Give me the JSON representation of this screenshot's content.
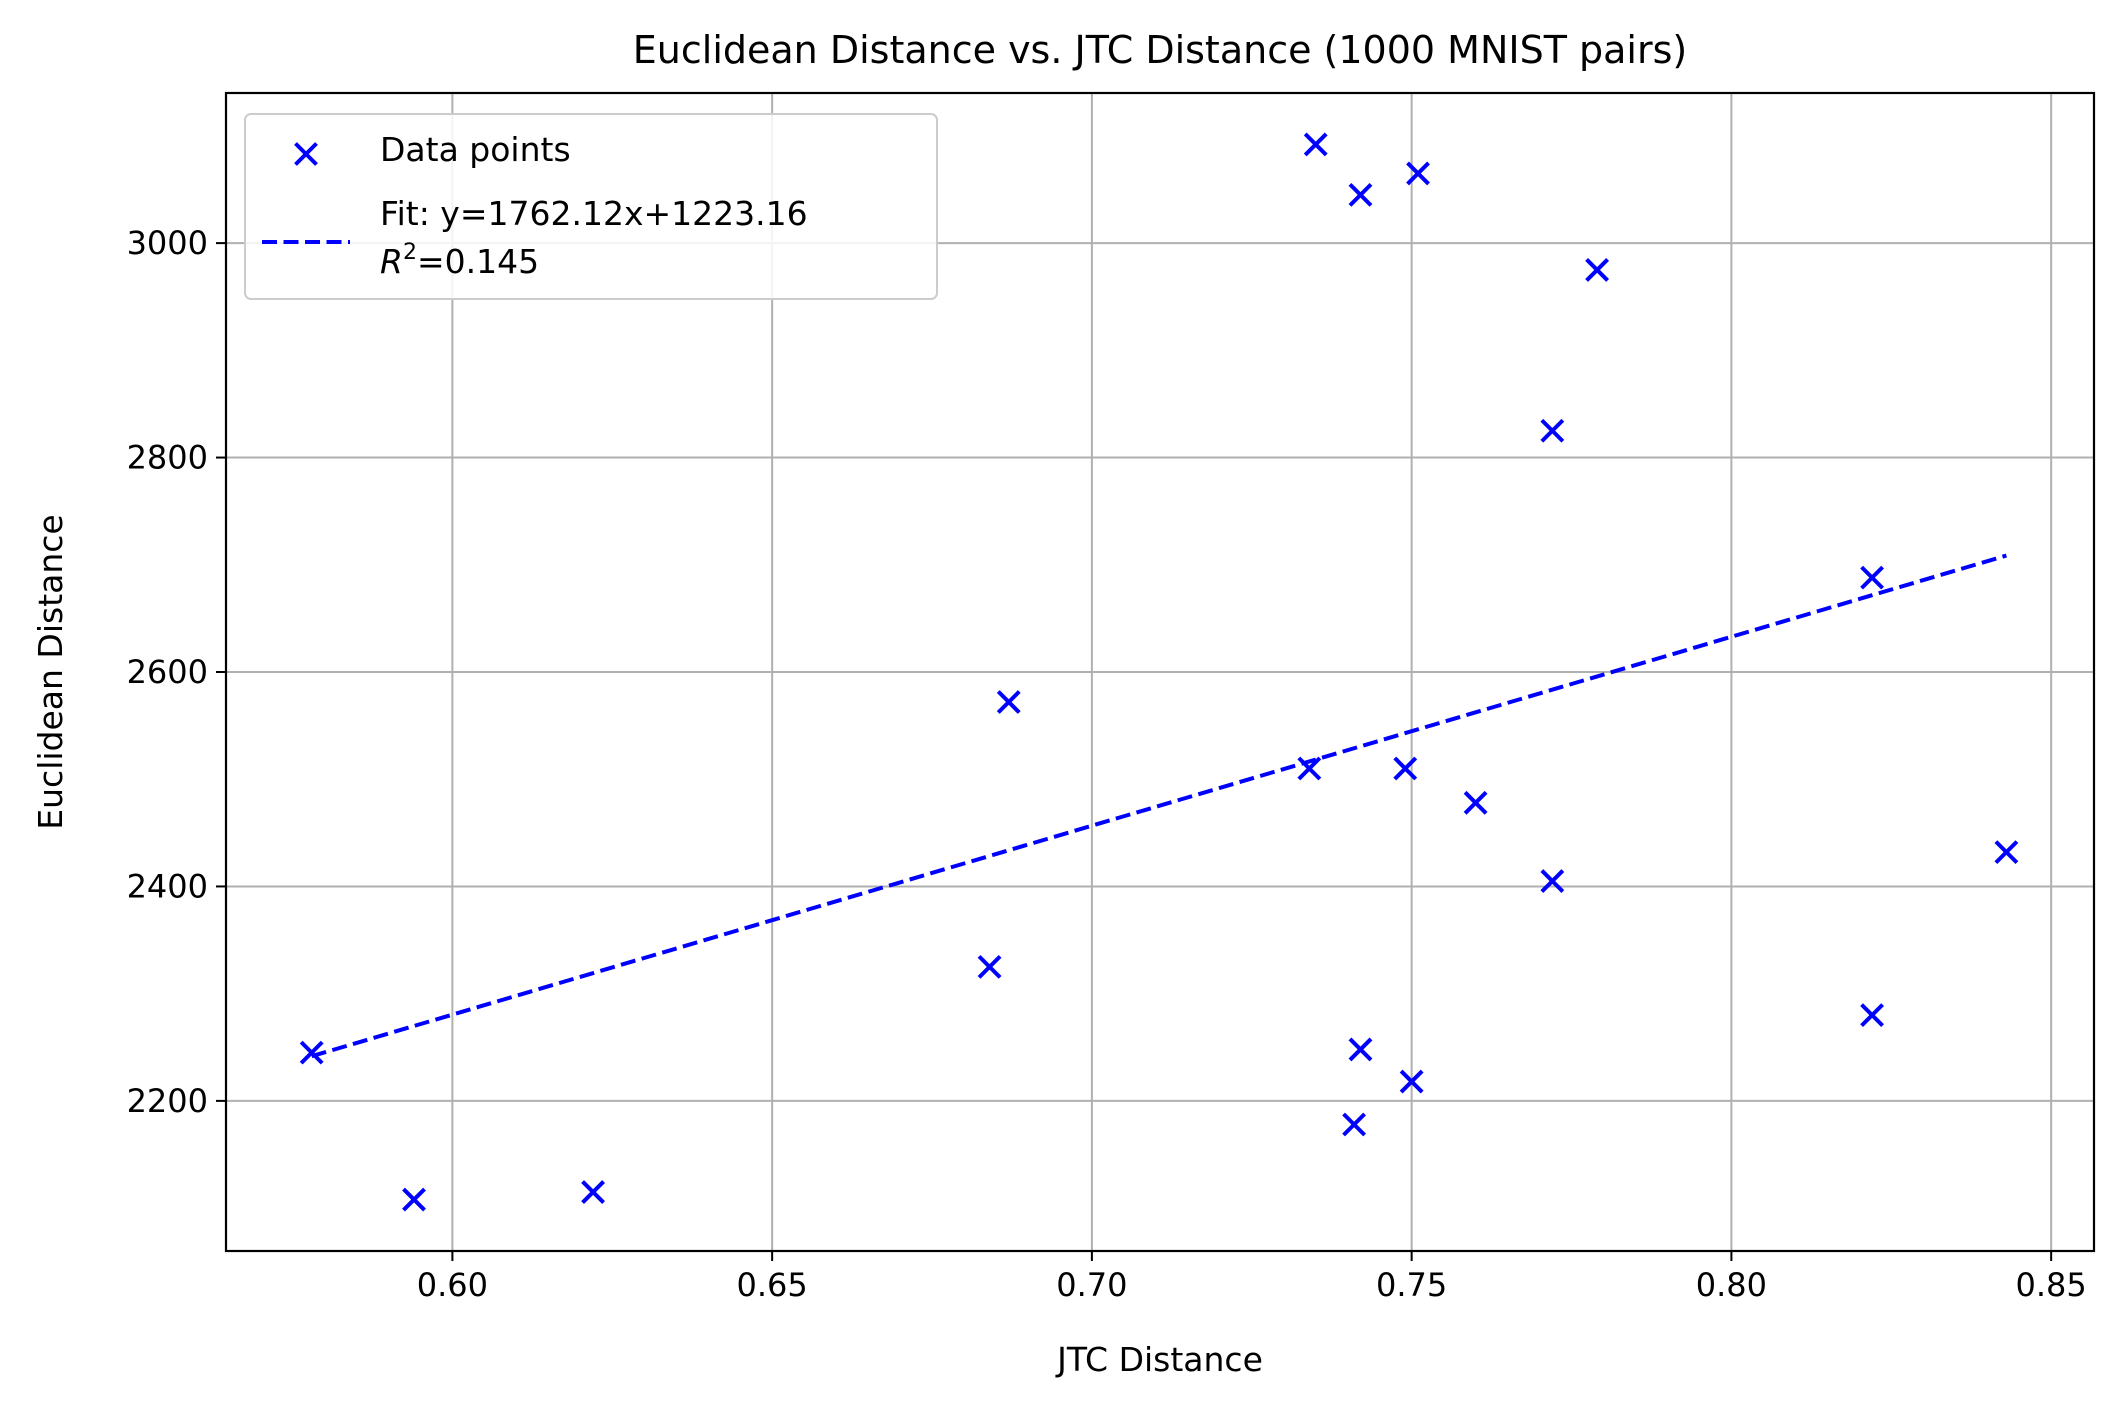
{
  "chart_data": {
    "type": "scatter",
    "title": "Euclidean Distance vs. JTC Distance (1000 MNIST pairs)",
    "xlabel": "JTC Distance",
    "ylabel": "Euclidean Distance",
    "xlim": [
      0.5646,
      0.8567
    ],
    "ylim": [
      2060,
      3140
    ],
    "xticks": [
      0.6,
      0.65,
      0.7,
      0.75,
      0.8,
      0.85
    ],
    "xtick_labels": [
      "0.60",
      "0.65",
      "0.70",
      "0.75",
      "0.80",
      "0.85"
    ],
    "yticks": [
      2200,
      2400,
      2600,
      2800,
      3000
    ],
    "ytick_labels": [
      "2200",
      "2400",
      "2600",
      "2800",
      "3000"
    ],
    "grid": true,
    "legend_position": "top-left",
    "colors": {
      "series": "#0000ff",
      "grid": "#b0b0b0",
      "axes": "#000000"
    },
    "series": [
      {
        "name": "Data points",
        "marker": "x",
        "points": [
          {
            "x": 0.578,
            "y": 2245
          },
          {
            "x": 0.594,
            "y": 2108
          },
          {
            "x": 0.622,
            "y": 2115
          },
          {
            "x": 0.684,
            "y": 2325
          },
          {
            "x": 0.687,
            "y": 2572
          },
          {
            "x": 0.734,
            "y": 2510
          },
          {
            "x": 0.735,
            "y": 3092
          },
          {
            "x": 0.741,
            "y": 2178
          },
          {
            "x": 0.742,
            "y": 2248
          },
          {
            "x": 0.742,
            "y": 3045
          },
          {
            "x": 0.749,
            "y": 2510
          },
          {
            "x": 0.75,
            "y": 2218
          },
          {
            "x": 0.751,
            "y": 3065
          },
          {
            "x": 0.76,
            "y": 2478
          },
          {
            "x": 0.772,
            "y": 2825
          },
          {
            "x": 0.772,
            "y": 2405
          },
          {
            "x": 0.779,
            "y": 2975
          },
          {
            "x": 0.822,
            "y": 2280
          },
          {
            "x": 0.822,
            "y": 2688
          },
          {
            "x": 0.843,
            "y": 2432
          }
        ]
      }
    ],
    "fit_line": {
      "label_line1": "Fit: y=1762.12x+1223.16",
      "r2_symbol": "R",
      "r2_exponent": "2",
      "r2_value": "=0.145",
      "slope": 1762.12,
      "intercept": 1223.16,
      "x_range": [
        0.578,
        0.843
      ],
      "style": "dashed"
    }
  }
}
